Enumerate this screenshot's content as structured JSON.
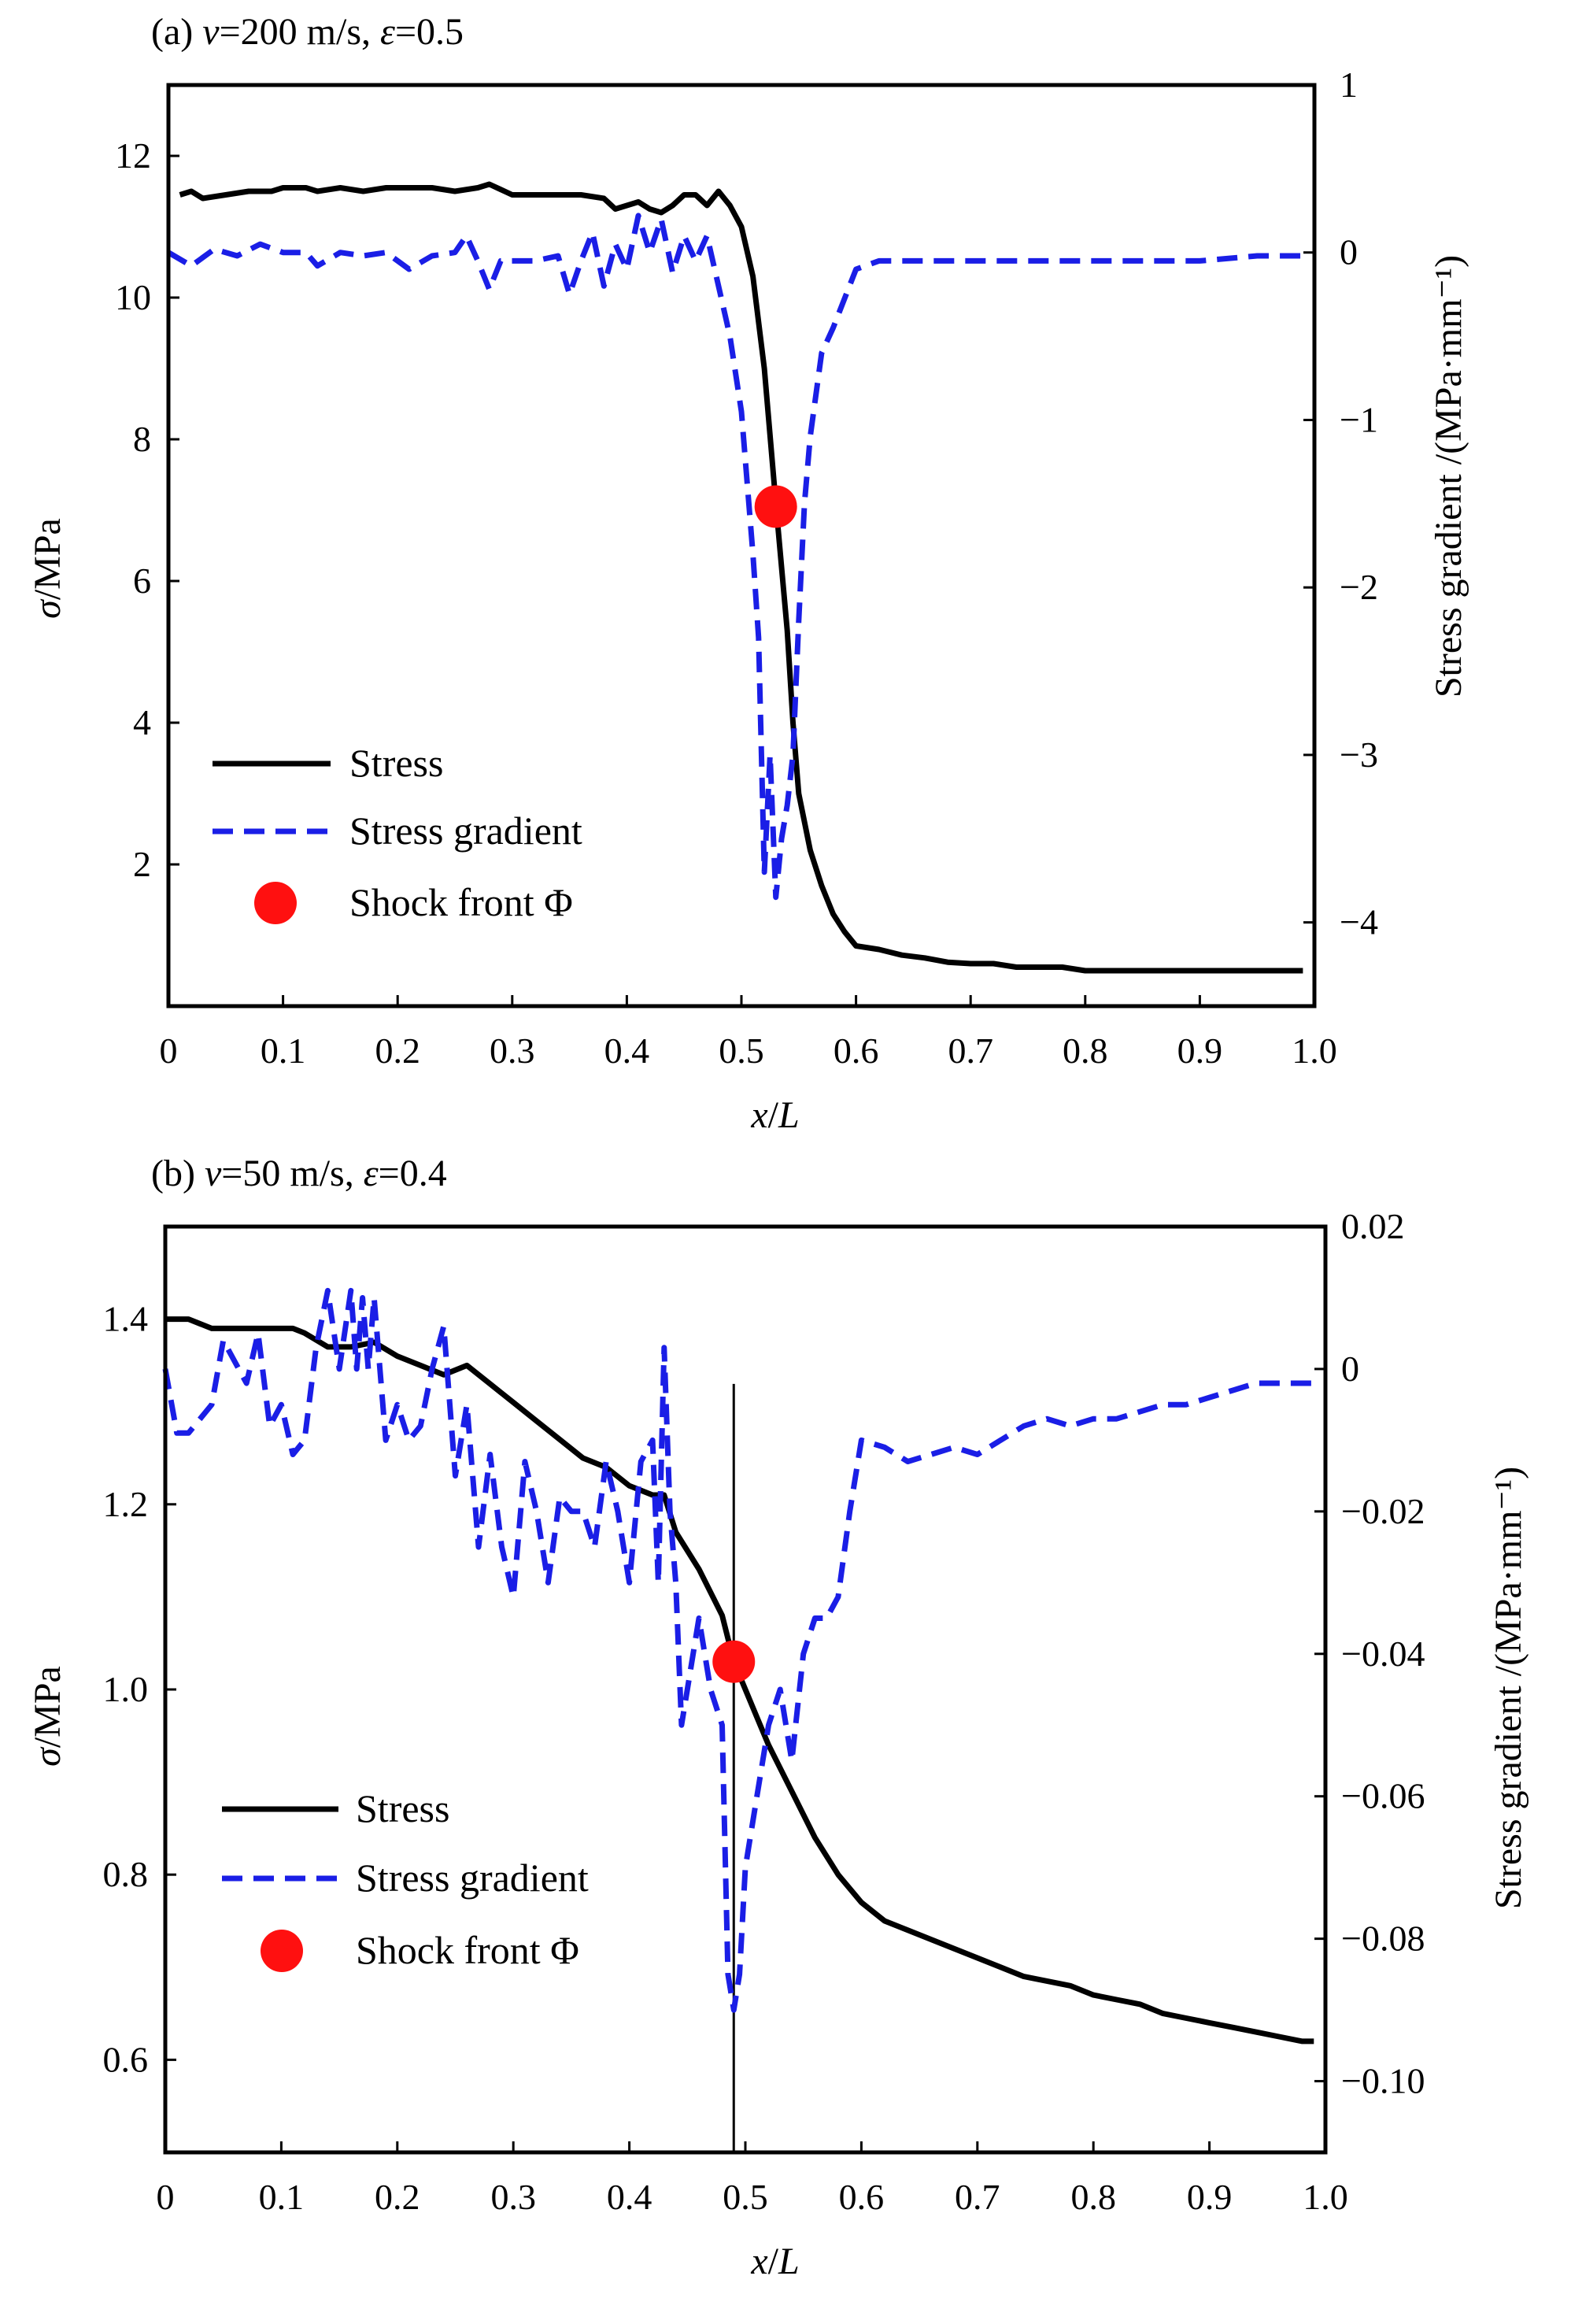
{
  "chart_data": [
    {
      "type": "line",
      "title": "(a) v=200 m/s,  ε=0.5",
      "title_parts": {
        "prefix": "(a) ",
        "v_symbol": "v",
        "v_value": "=200 m/s,  ",
        "eps_symbol": "ε",
        "eps_value": "=0.5"
      },
      "xlabel": "x/L",
      "xlabel_parts": {
        "x": "x",
        "sep": "/",
        "L": "L"
      },
      "ylabel": "σ/MPa",
      "ylabel_parts": {
        "sigma": "σ",
        "unit": "/MPa"
      },
      "y2label": "Stress gradient /(MPa·mm⁻¹)",
      "xlim": [
        0,
        1.0
      ],
      "ylim": [
        0,
        13
      ],
      "y2lim": [
        -4.5,
        1
      ],
      "x_ticks": [
        "0",
        "0.1",
        "0.2",
        "0.3",
        "0.4",
        "0.5",
        "0.6",
        "0.7",
        "0.8",
        "0.9",
        "1.0"
      ],
      "y_ticks": [
        {
          "value": 2,
          "label": "2"
        },
        {
          "value": 4,
          "label": "4"
        },
        {
          "value": 6,
          "label": "6"
        },
        {
          "value": 8,
          "label": "8"
        },
        {
          "value": 10,
          "label": "10"
        },
        {
          "value": 12,
          "label": "12"
        }
      ],
      "y2_ticks": [
        {
          "value": 1,
          "label": "1"
        },
        {
          "value": 0,
          "label": "0"
        },
        {
          "value": -1,
          "label": "−1"
        },
        {
          "value": -2,
          "label": "−2"
        },
        {
          "value": -3,
          "label": "−3"
        },
        {
          "value": -4,
          "label": "−4"
        }
      ],
      "grid": false,
      "legend_position": "bottom-left",
      "legend": [
        "Stress",
        "Stress gradient",
        "Shock front Φ"
      ],
      "series": [
        {
          "name": "Stress",
          "axis": "left",
          "color": "#000000",
          "style": "solid",
          "x": [
            0.01,
            0.02,
            0.03,
            0.05,
            0.07,
            0.09,
            0.1,
            0.12,
            0.13,
            0.15,
            0.17,
            0.19,
            0.21,
            0.23,
            0.25,
            0.27,
            0.28,
            0.3,
            0.32,
            0.34,
            0.36,
            0.38,
            0.39,
            0.4,
            0.41,
            0.42,
            0.43,
            0.44,
            0.45,
            0.46,
            0.47,
            0.48,
            0.49,
            0.5,
            0.51,
            0.52,
            0.53,
            0.54,
            0.545,
            0.55,
            0.56,
            0.57,
            0.58,
            0.59,
            0.6,
            0.62,
            0.64,
            0.66,
            0.68,
            0.7,
            0.72,
            0.74,
            0.76,
            0.78,
            0.8,
            0.82,
            0.85,
            0.9,
            0.95,
            0.99
          ],
          "values": [
            11.45,
            11.5,
            11.4,
            11.45,
            11.5,
            11.5,
            11.55,
            11.55,
            11.5,
            11.55,
            11.5,
            11.55,
            11.55,
            11.55,
            11.5,
            11.55,
            11.6,
            11.45,
            11.45,
            11.45,
            11.45,
            11.4,
            11.25,
            11.3,
            11.35,
            11.25,
            11.2,
            11.3,
            11.45,
            11.45,
            11.3,
            11.5,
            11.3,
            11.0,
            10.3,
            9.0,
            7.1,
            5.3,
            4.0,
            3.0,
            2.2,
            1.7,
            1.3,
            1.05,
            0.85,
            0.8,
            0.72,
            0.68,
            0.62,
            0.6,
            0.6,
            0.55,
            0.55,
            0.55,
            0.5,
            0.5,
            0.5,
            0.5,
            0.5,
            0.5
          ]
        },
        {
          "name": "Stress gradient",
          "axis": "right",
          "color": "#1a1ee6",
          "style": "dashed",
          "x": [
            0.0,
            0.02,
            0.04,
            0.06,
            0.08,
            0.1,
            0.12,
            0.13,
            0.15,
            0.17,
            0.19,
            0.21,
            0.23,
            0.25,
            0.26,
            0.27,
            0.28,
            0.29,
            0.3,
            0.32,
            0.34,
            0.35,
            0.36,
            0.37,
            0.38,
            0.39,
            0.4,
            0.41,
            0.42,
            0.43,
            0.44,
            0.45,
            0.46,
            0.47,
            0.48,
            0.49,
            0.5,
            0.51,
            0.515,
            0.52,
            0.525,
            0.53,
            0.535,
            0.54,
            0.545,
            0.55,
            0.555,
            0.56,
            0.57,
            0.58,
            0.6,
            0.62,
            0.63,
            0.65,
            0.7,
            0.75,
            0.8,
            0.85,
            0.9,
            0.95,
            0.99
          ],
          "values": [
            0.0,
            -0.08,
            0.02,
            -0.02,
            0.05,
            0.0,
            0.0,
            -0.08,
            0.0,
            -0.02,
            0.0,
            -0.1,
            -0.02,
            0.0,
            0.1,
            -0.05,
            -0.22,
            -0.05,
            -0.05,
            -0.05,
            -0.02,
            -0.25,
            -0.05,
            0.12,
            -0.2,
            0.05,
            -0.1,
            0.22,
            0.0,
            0.2,
            -0.12,
            0.1,
            -0.05,
            0.1,
            -0.2,
            -0.5,
            -0.95,
            -1.8,
            -2.3,
            -3.7,
            -3.0,
            -3.85,
            -3.5,
            -3.3,
            -3.0,
            -2.2,
            -1.5,
            -1.1,
            -0.6,
            -0.45,
            -0.1,
            -0.05,
            -0.05,
            -0.05,
            -0.05,
            -0.05,
            -0.05,
            -0.05,
            -0.05,
            -0.02,
            -0.02
          ]
        }
      ],
      "shock_front": {
        "x": 0.53,
        "y": 7.05,
        "axis": "left",
        "color": "#ff1010"
      }
    },
    {
      "type": "line",
      "title": "(b) v=50 m/s,  ε=0.4",
      "title_parts": {
        "prefix": "(b) ",
        "v_symbol": "v",
        "v_value": "=50 m/s,  ",
        "eps_symbol": "ε",
        "eps_value": "=0.4"
      },
      "xlabel": "x/L",
      "xlabel_parts": {
        "x": "x",
        "sep": "/",
        "L": "L"
      },
      "ylabel": "σ/MPa",
      "ylabel_parts": {
        "sigma": "σ",
        "unit": "/MPa"
      },
      "y2label": "Stress gradient /(MPa·mm⁻¹)",
      "xlim": [
        0,
        1.0
      ],
      "ylim": [
        0.5,
        1.5
      ],
      "y2lim": [
        -0.11,
        0.02
      ],
      "x_ticks": [
        "0",
        "0.1",
        "0.2",
        "0.3",
        "0.4",
        "0.5",
        "0.6",
        "0.7",
        "0.8",
        "0.9",
        "1.0"
      ],
      "y_ticks": [
        {
          "value": 0.6,
          "label": "0.6"
        },
        {
          "value": 0.8,
          "label": "0.8"
        },
        {
          "value": 1.0,
          "label": "1.0"
        },
        {
          "value": 1.2,
          "label": "1.2"
        },
        {
          "value": 1.4,
          "label": "1.4"
        }
      ],
      "y2_ticks": [
        {
          "value": 0.02,
          "label": "0.02"
        },
        {
          "value": 0,
          "label": "0"
        },
        {
          "value": -0.02,
          "label": "−0.02"
        },
        {
          "value": -0.04,
          "label": "−0.04"
        },
        {
          "value": -0.06,
          "label": "−0.06"
        },
        {
          "value": -0.08,
          "label": "−0.08"
        },
        {
          "value": -0.1,
          "label": "−0.10"
        }
      ],
      "grid": false,
      "legend_position": "bottom-left",
      "legend": [
        "Stress",
        "Stress gradient",
        "Shock front Φ"
      ],
      "series": [
        {
          "name": "Stress",
          "axis": "left",
          "color": "#000000",
          "style": "solid",
          "x": [
            0.0,
            0.02,
            0.04,
            0.06,
            0.08,
            0.09,
            0.1,
            0.11,
            0.12,
            0.14,
            0.16,
            0.18,
            0.2,
            0.22,
            0.24,
            0.26,
            0.28,
            0.3,
            0.32,
            0.34,
            0.36,
            0.38,
            0.4,
            0.42,
            0.43,
            0.44,
            0.46,
            0.48,
            0.49,
            0.5,
            0.51,
            0.52,
            0.54,
            0.56,
            0.58,
            0.6,
            0.62,
            0.64,
            0.66,
            0.68,
            0.7,
            0.72,
            0.74,
            0.76,
            0.78,
            0.8,
            0.82,
            0.84,
            0.86,
            0.88,
            0.9,
            0.92,
            0.94,
            0.96,
            0.98,
            0.99
          ],
          "values": [
            1.4,
            1.4,
            1.39,
            1.39,
            1.39,
            1.39,
            1.39,
            1.39,
            1.385,
            1.37,
            1.37,
            1.375,
            1.36,
            1.35,
            1.34,
            1.35,
            1.33,
            1.31,
            1.29,
            1.27,
            1.25,
            1.24,
            1.22,
            1.21,
            1.21,
            1.17,
            1.13,
            1.08,
            1.03,
            1.0,
            0.97,
            0.94,
            0.89,
            0.84,
            0.8,
            0.77,
            0.75,
            0.74,
            0.73,
            0.72,
            0.71,
            0.7,
            0.69,
            0.685,
            0.68,
            0.67,
            0.665,
            0.66,
            0.65,
            0.645,
            0.64,
            0.635,
            0.63,
            0.625,
            0.62,
            0.62
          ]
        },
        {
          "name": "Stress gradient",
          "axis": "right",
          "color": "#1a1ee6",
          "style": "dashed",
          "x": [
            0.0,
            0.01,
            0.02,
            0.04,
            0.05,
            0.07,
            0.08,
            0.09,
            0.1,
            0.11,
            0.12,
            0.13,
            0.14,
            0.15,
            0.16,
            0.165,
            0.17,
            0.175,
            0.18,
            0.19,
            0.2,
            0.21,
            0.22,
            0.23,
            0.24,
            0.25,
            0.26,
            0.27,
            0.28,
            0.29,
            0.3,
            0.31,
            0.32,
            0.33,
            0.34,
            0.35,
            0.36,
            0.37,
            0.38,
            0.39,
            0.4,
            0.41,
            0.42,
            0.425,
            0.43,
            0.435,
            0.44,
            0.445,
            0.45,
            0.46,
            0.47,
            0.48,
            0.485,
            0.49,
            0.495,
            0.5,
            0.51,
            0.52,
            0.53,
            0.54,
            0.55,
            0.56,
            0.57,
            0.58,
            0.59,
            0.6,
            0.62,
            0.64,
            0.66,
            0.68,
            0.7,
            0.72,
            0.74,
            0.76,
            0.78,
            0.8,
            0.82,
            0.84,
            0.86,
            0.88,
            0.9,
            0.92,
            0.94,
            0.96,
            0.98,
            0.99
          ],
          "values": [
            0.0,
            -0.009,
            -0.009,
            -0.005,
            0.004,
            -0.002,
            0.005,
            -0.008,
            -0.005,
            -0.012,
            -0.01,
            0.003,
            0.011,
            0.0,
            0.011,
            0.0,
            0.01,
            0.0,
            0.01,
            -0.01,
            -0.005,
            -0.01,
            -0.008,
            0.0,
            0.006,
            -0.015,
            -0.005,
            -0.025,
            -0.012,
            -0.025,
            -0.032,
            -0.013,
            -0.02,
            -0.03,
            -0.018,
            -0.02,
            -0.02,
            -0.025,
            -0.013,
            -0.02,
            -0.03,
            -0.013,
            -0.01,
            -0.03,
            0.003,
            -0.02,
            -0.03,
            -0.05,
            -0.045,
            -0.035,
            -0.045,
            -0.05,
            -0.085,
            -0.09,
            -0.085,
            -0.07,
            -0.06,
            -0.05,
            -0.045,
            -0.055,
            -0.04,
            -0.035,
            -0.035,
            -0.032,
            -0.02,
            -0.01,
            -0.011,
            -0.013,
            -0.012,
            -0.011,
            -0.012,
            -0.01,
            -0.008,
            -0.007,
            -0.008,
            -0.007,
            -0.007,
            -0.006,
            -0.005,
            -0.005,
            -0.004,
            -0.003,
            -0.002,
            -0.002,
            -0.002,
            -0.002
          ]
        }
      ],
      "shock_front": {
        "x": 0.49,
        "y": 1.03,
        "axis": "left",
        "color": "#ff1010"
      },
      "vertical_line": {
        "x": 0.49,
        "from_y": 1.33,
        "to_y": 0.5
      }
    }
  ]
}
